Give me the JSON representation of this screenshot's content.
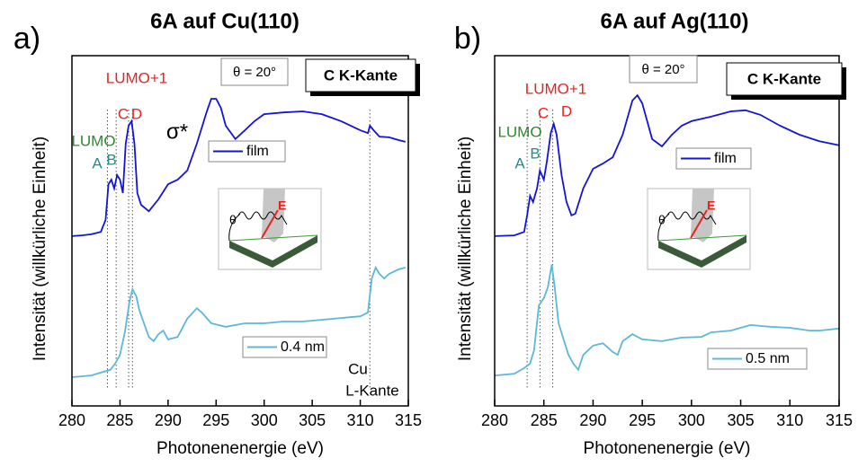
{
  "chart_data": [
    {
      "type": "line",
      "panel_label": "a)",
      "title": "6A auf Cu(110)",
      "x_label": "Photonenenergie (eV)",
      "y_label": "Intensität (willkürliche Einheit)",
      "xlim": [
        280,
        315
      ],
      "xticks": [
        280,
        285,
        290,
        295,
        300,
        305,
        310,
        315
      ],
      "ylim": [
        0,
        100
      ],
      "angle_note": "θ = 20°",
      "edge_note": "C K-Kante",
      "inset": {
        "angle_label": "θ",
        "field_label": "E"
      },
      "reference_lines": [
        283.7,
        284.6,
        285.9,
        286.3,
        311.0
      ],
      "annotations": [
        {
          "text": "LUMO+1",
          "color": "#e8231f"
        },
        {
          "text": "C",
          "color": "#e8231f"
        },
        {
          "text": "D",
          "color": "#e8231f"
        },
        {
          "text": "LUMO",
          "color": "#2b8a2b"
        },
        {
          "text": "A",
          "color": "#2a8a8a"
        },
        {
          "text": "B",
          "color": "#2a8a8a"
        },
        {
          "text": "σ*",
          "color": "#000000"
        },
        {
          "text": "Cu",
          "color": "#000000"
        },
        {
          "text": "L-Kante",
          "color": "#000000"
        }
      ],
      "series": [
        {
          "name": "film",
          "color": "#1414d8",
          "x": [
            280,
            281,
            282,
            283,
            283.5,
            283.8,
            284.1,
            284.4,
            284.7,
            285,
            285.3,
            285.6,
            285.9,
            286.2,
            286.5,
            286.8,
            287.2,
            288,
            289,
            290,
            291,
            292,
            293,
            294,
            294.5,
            295,
            295.5,
            296,
            297,
            298,
            299,
            300,
            302,
            304,
            306,
            308,
            310,
            310.8,
            311,
            311.4,
            312,
            313,
            314,
            314.7
          ],
          "values": [
            48.5,
            48.7,
            49.0,
            49.7,
            53.1,
            63.3,
            64.6,
            62.1,
            65.9,
            64.6,
            60.8,
            74.9,
            80.0,
            81.3,
            74.9,
            60.8,
            57.4,
            55.6,
            59.0,
            63.3,
            64.6,
            67.2,
            74.9,
            83.8,
            87.7,
            87.7,
            85.1,
            80.0,
            76.2,
            78.7,
            81.3,
            83.3,
            83.8,
            84.1,
            83.3,
            81.3,
            78.7,
            77.9,
            80.0,
            78.7,
            76.9,
            76.7,
            75.9,
            75.4
          ]
        },
        {
          "name": "0.4 nm",
          "color": "#5bb8d6",
          "x": [
            280,
            282,
            283,
            284,
            284.5,
            285,
            285.5,
            286,
            286.3,
            286.7,
            287,
            288,
            288.5,
            289,
            289.5,
            290,
            291,
            292,
            293,
            293.5,
            294.5,
            296,
            298,
            300,
            302,
            304,
            306,
            308,
            310,
            310.8,
            311.2,
            311.6,
            312,
            312.5,
            313,
            314,
            314.7
          ],
          "values": [
            8.2,
            8.7,
            9.5,
            10.3,
            12.1,
            14.6,
            21.0,
            30.0,
            33.3,
            31.3,
            27.4,
            19.7,
            18.5,
            20.5,
            21.5,
            19.0,
            19.7,
            24.9,
            27.9,
            26.7,
            23.6,
            22.6,
            23.6,
            23.6,
            24.1,
            24.1,
            24.6,
            25.1,
            25.6,
            26.7,
            36.4,
            39.5,
            37.7,
            36.4,
            37.7,
            39.0,
            39.5
          ]
        }
      ]
    },
    {
      "type": "line",
      "panel_label": "b)",
      "title": "6A auf Ag(110)",
      "x_label": "Photonenenergie (eV)",
      "y_label": "Intensität (willkürliche Einheit)",
      "xlim": [
        280,
        315
      ],
      "xticks": [
        280,
        285,
        290,
        295,
        300,
        305,
        310,
        315
      ],
      "ylim": [
        0,
        100
      ],
      "angle_note": "θ = 20°",
      "edge_note": "C K-Kante",
      "inset": {
        "angle_label": "θ",
        "field_label": "E"
      },
      "reference_lines": [
        283.3,
        284.6,
        285.9
      ],
      "annotations": [
        {
          "text": "LUMO+1",
          "color": "#e8231f"
        },
        {
          "text": "C",
          "color": "#e8231f"
        },
        {
          "text": "D",
          "color": "#e8231f"
        },
        {
          "text": "LUMO",
          "color": "#2b8a2b"
        },
        {
          "text": "A",
          "color": "#2a8a8a"
        },
        {
          "text": "B",
          "color": "#2a8a8a"
        }
      ],
      "series": [
        {
          "name": "film",
          "color": "#1414d8",
          "x": [
            280,
            282,
            283,
            283.3,
            283.6,
            283.9,
            284.3,
            284.6,
            285,
            285.3,
            285.7,
            286,
            286.3,
            286.8,
            287.3,
            287.8,
            288.2,
            289,
            290,
            291,
            292,
            293,
            294,
            294.5,
            295,
            295.5,
            296,
            297,
            298,
            299,
            300,
            302,
            304,
            305.5,
            307,
            309,
            311,
            313,
            315
          ],
          "values": [
            48.5,
            48.7,
            49.7,
            54.4,
            60.0,
            58.2,
            62.1,
            67.2,
            64.6,
            69.7,
            77.9,
            80.5,
            77.4,
            65.9,
            58.2,
            54.4,
            54.9,
            62.1,
            67.7,
            69.2,
            71.0,
            77.4,
            87.2,
            88.7,
            86.4,
            81.3,
            76.2,
            74.1,
            77.4,
            80.0,
            81.3,
            82.6,
            84.1,
            84.4,
            83.1,
            80.0,
            77.4,
            75.6,
            74.4
          ]
        },
        {
          "name": "0.5 nm",
          "color": "#5bb8d6",
          "x": [
            280,
            282,
            283,
            283.6,
            284,
            284.5,
            285,
            285.4,
            285.8,
            286.1,
            286.5,
            287,
            287.5,
            288,
            288.5,
            289,
            290,
            291,
            292,
            292.5,
            293,
            294,
            295,
            297,
            299,
            301,
            302,
            304,
            306,
            308,
            310,
            312,
            313,
            315
          ],
          "values": [
            8.7,
            9.2,
            10.8,
            12.1,
            15.9,
            28.7,
            30.8,
            33.8,
            40.3,
            33.8,
            23.6,
            19.0,
            14.6,
            12.1,
            10.3,
            14.6,
            17.2,
            17.9,
            15.4,
            14.6,
            18.5,
            20.5,
            19.0,
            18.5,
            19.5,
            19.7,
            21.0,
            21.5,
            23.1,
            22.6,
            22.3,
            21.5,
            21.5,
            22.1
          ]
        }
      ]
    }
  ]
}
